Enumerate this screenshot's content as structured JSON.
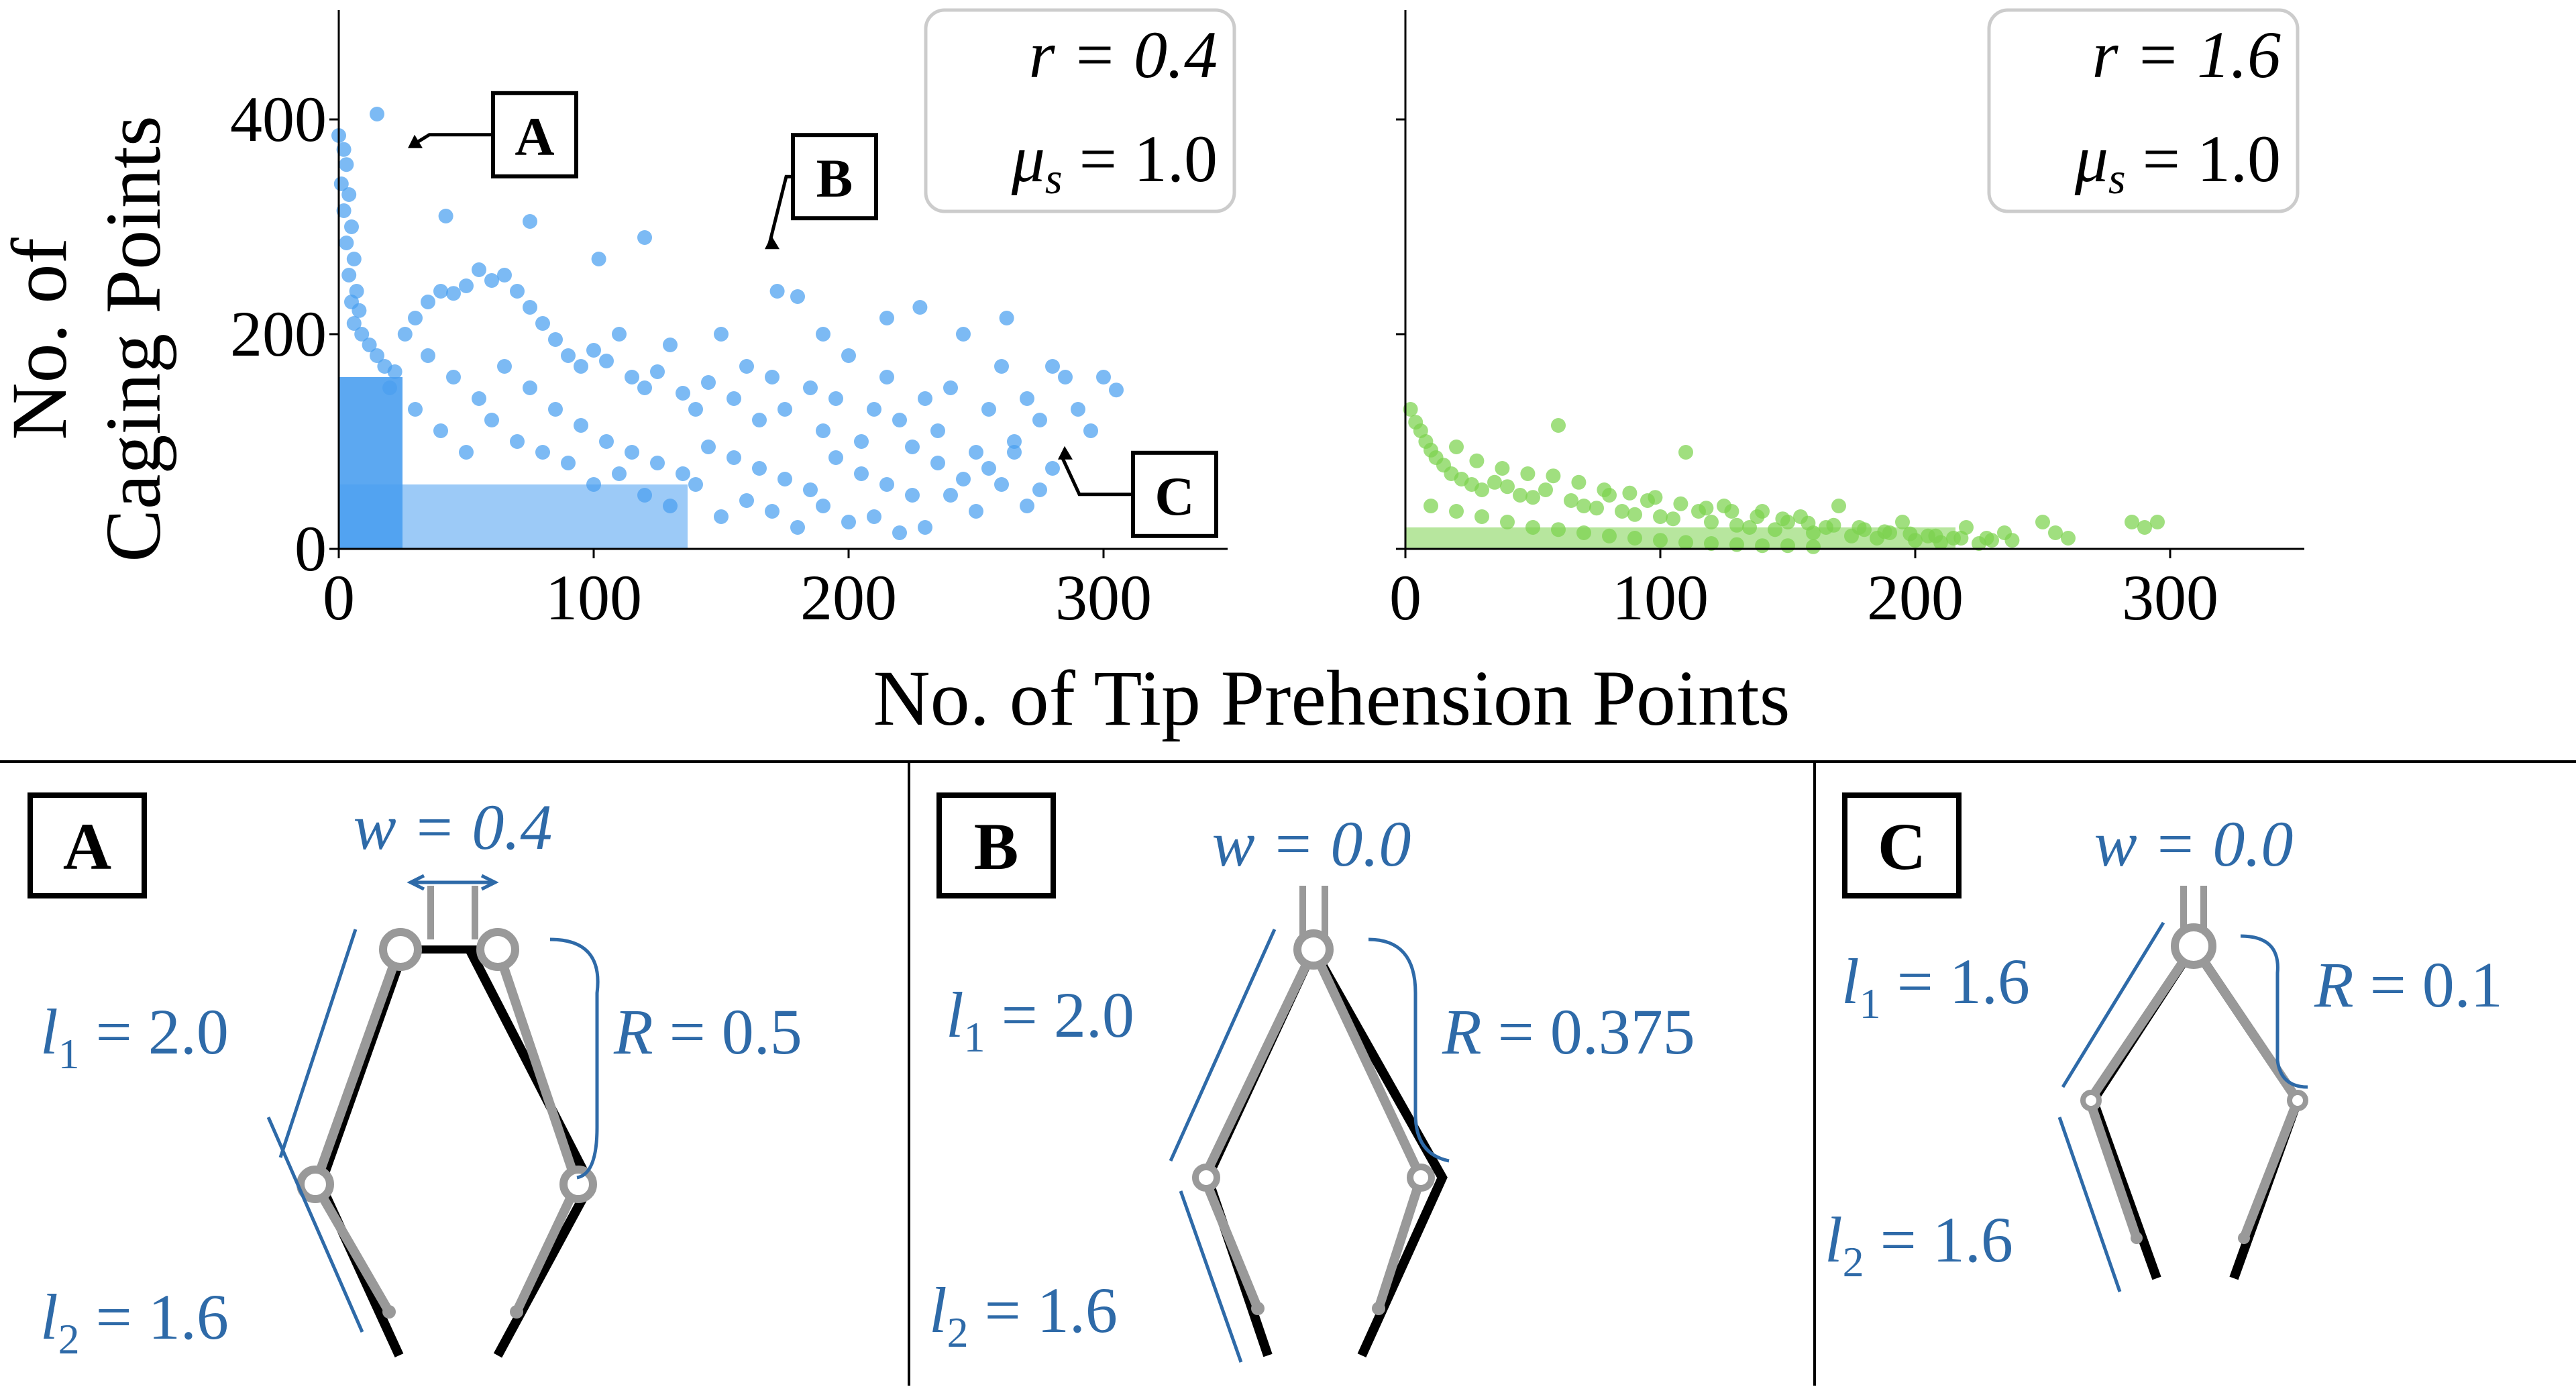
{
  "axes": {
    "ylabel_line1": "No. of",
    "ylabel_line2": "Caging Points",
    "xlabel": "No. of Tip Prehension Points"
  },
  "chart_data": [
    {
      "type": "scatter",
      "panel": "left",
      "xlim": [
        0,
        350
      ],
      "ylim": [
        0,
        500
      ],
      "xticks": [
        "0",
        "100",
        "200",
        "300"
      ],
      "yticks": [
        "0",
        "200",
        "400"
      ],
      "color": "#4a9ff0",
      "legend_box": {
        "r_label": "r = 0.4",
        "mu_label": "μ",
        "mu_sub": "s",
        "mu_value": " = 1.0",
        "placement": "top-right"
      },
      "annotations": [
        {
          "label": "A",
          "x": 25,
          "y": 372
        },
        {
          "label": "B",
          "x": 165,
          "y": 278
        },
        {
          "label": "C",
          "x": 280,
          "y": 82
        }
      ],
      "series": [
        {
          "points": [
            [
              0,
              385
            ],
            [
              2,
              372
            ],
            [
              3,
              358
            ],
            [
              1,
              340
            ],
            [
              4,
              330
            ],
            [
              2,
              315
            ],
            [
              5,
              300
            ],
            [
              3,
              285
            ],
            [
              6,
              270
            ],
            [
              4,
              255
            ],
            [
              7,
              240
            ],
            [
              5,
              230
            ],
            [
              8,
              222
            ],
            [
              6,
              210
            ],
            [
              9,
              200
            ],
            [
              12,
              190
            ],
            [
              15,
              180
            ],
            [
              18,
              170
            ],
            [
              22,
              165
            ],
            [
              26,
              200
            ],
            [
              30,
              215
            ],
            [
              35,
              230
            ],
            [
              40,
              240
            ],
            [
              45,
              238
            ],
            [
              50,
              245
            ],
            [
              55,
              260
            ],
            [
              60,
              250
            ],
            [
              65,
              255
            ],
            [
              70,
              240
            ],
            [
              75,
              225
            ],
            [
              80,
              210
            ],
            [
              85,
              195
            ],
            [
              90,
              180
            ],
            [
              95,
              170
            ],
            [
              100,
              185
            ],
            [
              105,
              175
            ],
            [
              110,
              200
            ],
            [
              115,
              160
            ],
            [
              120,
              150
            ],
            [
              125,
              165
            ],
            [
              130,
              190
            ],
            [
              135,
              145
            ],
            [
              140,
              130
            ],
            [
              145,
              155
            ],
            [
              150,
              200
            ],
            [
              155,
              140
            ],
            [
              160,
              170
            ],
            [
              165,
              120
            ],
            [
              170,
              160
            ],
            [
              175,
              130
            ],
            [
              180,
              235
            ],
            [
              185,
              150
            ],
            [
              190,
              110
            ],
            [
              195,
              140
            ],
            [
              200,
              180
            ],
            [
              205,
              100
            ],
            [
              210,
              130
            ],
            [
              215,
              160
            ],
            [
              220,
              120
            ],
            [
              225,
              95
            ],
            [
              230,
              140
            ],
            [
              235,
              110
            ],
            [
              240,
              150
            ],
            [
              245,
              200
            ],
            [
              250,
              90
            ],
            [
              255,
              130
            ],
            [
              260,
              170
            ],
            [
              265,
              100
            ],
            [
              270,
              140
            ],
            [
              275,
              120
            ],
            [
              285,
              160
            ],
            [
              290,
              130
            ],
            [
              295,
              110
            ],
            [
              305,
              148
            ],
            [
              15,
              405
            ],
            [
              42,
              310
            ],
            [
              75,
              305
            ],
            [
              102,
              270
            ],
            [
              120,
              290
            ],
            [
              172,
              240
            ],
            [
              190,
              200
            ],
            [
              215,
              215
            ],
            [
              228,
              225
            ],
            [
              262,
              215
            ],
            [
              280,
              170
            ],
            [
              300,
              160
            ],
            [
              60,
              120
            ],
            [
              70,
              100
            ],
            [
              80,
              90
            ],
            [
              90,
              80
            ],
            [
              100,
              60
            ],
            [
              110,
              70
            ],
            [
              120,
              50
            ],
            [
              130,
              40
            ],
            [
              140,
              60
            ],
            [
              150,
              30
            ],
            [
              160,
              45
            ],
            [
              170,
              35
            ],
            [
              180,
              20
            ],
            [
              190,
              40
            ],
            [
              200,
              25
            ],
            [
              210,
              30
            ],
            [
              220,
              15
            ],
            [
              230,
              20
            ],
            [
              240,
              50
            ],
            [
              250,
              35
            ],
            [
              260,
              60
            ],
            [
              270,
              40
            ],
            [
              280,
              75
            ],
            [
              20,
              150
            ],
            [
              30,
              130
            ],
            [
              40,
              110
            ],
            [
              50,
              90
            ],
            [
              35,
              180
            ],
            [
              45,
              160
            ],
            [
              55,
              140
            ],
            [
              65,
              170
            ],
            [
              75,
              150
            ],
            [
              85,
              130
            ],
            [
              95,
              115
            ],
            [
              105,
              100
            ],
            [
              115,
              90
            ],
            [
              125,
              80
            ],
            [
              135,
              70
            ],
            [
              145,
              95
            ],
            [
              155,
              85
            ],
            [
              165,
              75
            ],
            [
              175,
              65
            ],
            [
              185,
              55
            ],
            [
              195,
              85
            ],
            [
              205,
              70
            ],
            [
              215,
              60
            ],
            [
              225,
              50
            ],
            [
              235,
              80
            ],
            [
              245,
              65
            ],
            [
              255,
              75
            ],
            [
              265,
              90
            ],
            [
              275,
              55
            ]
          ]
        }
      ]
    },
    {
      "type": "scatter",
      "panel": "right",
      "xlim": [
        0,
        350
      ],
      "ylim": [
        0,
        500
      ],
      "xticks": [
        "0",
        "100",
        "200",
        "300"
      ],
      "yticks": [],
      "color": "#7cd24e",
      "legend_box": {
        "r_label": "r = 1.6",
        "mu_label": "μ",
        "mu_sub": "s",
        "mu_value": " = 1.0",
        "placement": "top-right"
      },
      "series": [
        {
          "points": [
            [
              2,
              130
            ],
            [
              4,
              118
            ],
            [
              6,
              110
            ],
            [
              8,
              100
            ],
            [
              10,
              92
            ],
            [
              12,
              85
            ],
            [
              15,
              78
            ],
            [
              18,
              70
            ],
            [
              22,
              65
            ],
            [
              26,
              60
            ],
            [
              30,
              55
            ],
            [
              35,
              62
            ],
            [
              40,
              58
            ],
            [
              45,
              50
            ],
            [
              50,
              48
            ],
            [
              55,
              55
            ],
            [
              60,
              115
            ],
            [
              65,
              45
            ],
            [
              70,
              40
            ],
            [
              75,
              38
            ],
            [
              80,
              50
            ],
            [
              85,
              35
            ],
            [
              90,
              32
            ],
            [
              95,
              45
            ],
            [
              100,
              30
            ],
            [
              105,
              28
            ],
            [
              110,
              90
            ],
            [
              115,
              35
            ],
            [
              120,
              25
            ],
            [
              125,
              40
            ],
            [
              130,
              22
            ],
            [
              135,
              20
            ],
            [
              140,
              35
            ],
            [
              145,
              18
            ],
            [
              150,
              25
            ],
            [
              155,
              30
            ],
            [
              160,
              15
            ],
            [
              165,
              20
            ],
            [
              170,
              40
            ],
            [
              175,
              12
            ],
            [
              180,
              18
            ],
            [
              185,
              10
            ],
            [
              190,
              15
            ],
            [
              195,
              25
            ],
            [
              200,
              8
            ],
            [
              205,
              12
            ],
            [
              210,
              6
            ],
            [
              215,
              10
            ],
            [
              220,
              20
            ],
            [
              225,
              5
            ],
            [
              230,
              8
            ],
            [
              235,
              15
            ],
            [
              250,
              25
            ],
            [
              255,
              15
            ],
            [
              260,
              10
            ],
            [
              285,
              25
            ],
            [
              290,
              20
            ],
            [
              295,
              25
            ],
            [
              20,
              95
            ],
            [
              28,
              82
            ],
            [
              38,
              75
            ],
            [
              48,
              70
            ],
            [
              58,
              68
            ],
            [
              68,
              62
            ],
            [
              78,
              55
            ],
            [
              88,
              52
            ],
            [
              98,
              48
            ],
            [
              108,
              42
            ],
            [
              118,
              38
            ],
            [
              128,
              35
            ],
            [
              138,
              30
            ],
            [
              148,
              28
            ],
            [
              158,
              24
            ],
            [
              168,
              22
            ],
            [
              178,
              20
            ],
            [
              188,
              16
            ],
            [
              198,
              14
            ],
            [
              208,
              12
            ],
            [
              218,
              10
            ],
            [
              228,
              10
            ],
            [
              238,
              8
            ],
            [
              10,
              40
            ],
            [
              20,
              35
            ],
            [
              30,
              30
            ],
            [
              40,
              25
            ],
            [
              50,
              20
            ],
            [
              60,
              18
            ],
            [
              70,
              15
            ],
            [
              80,
              12
            ],
            [
              90,
              10
            ],
            [
              100,
              8
            ],
            [
              110,
              6
            ],
            [
              120,
              5
            ],
            [
              130,
              4
            ],
            [
              140,
              3
            ],
            [
              150,
              3
            ],
            [
              160,
              2
            ]
          ]
        }
      ]
    }
  ],
  "panels": {
    "A": {
      "title": "A",
      "w_label": "w = 0.4",
      "l1_label": "l",
      "l1_sub": "1",
      "l1_value": " = 2.0",
      "l2_label": "l",
      "l2_sub": "2",
      "l2_value": " = 1.6",
      "R_label": "R",
      "R_value": " = 0.5"
    },
    "B": {
      "title": "B",
      "w_label": "w = 0.0",
      "l1_label": "l",
      "l1_sub": "1",
      "l1_value": " = 2.0",
      "l2_label": "l",
      "l2_sub": "2",
      "l2_value": " = 1.6",
      "R_label": "R",
      "R_value": " = 0.375"
    },
    "C": {
      "title": "C",
      "w_label": "w = 0.0",
      "l1_label": "l",
      "l1_sub": "1",
      "l1_value": " = 1.6",
      "l2_label": "l",
      "l2_sub": "2",
      "l2_value": " = 1.6",
      "R_label": "R",
      "R_value": " = 0.1"
    }
  }
}
